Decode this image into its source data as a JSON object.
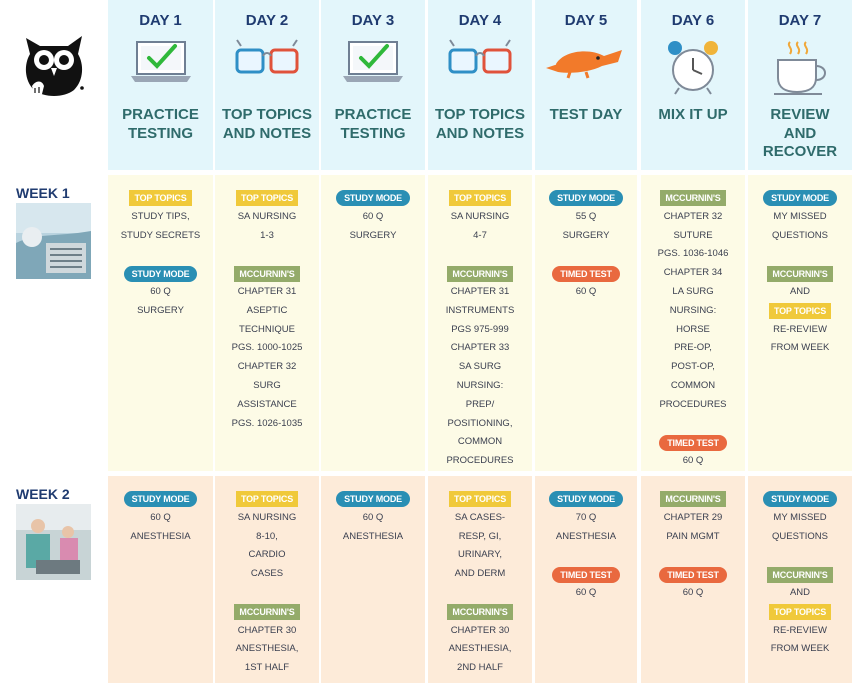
{
  "days": [
    {
      "name": "DAY 1",
      "title": [
        "PRACTICE",
        "TESTING"
      ],
      "icon": "laptop-check-icon"
    },
    {
      "name": "DAY 2",
      "title": [
        "TOP TOPICS",
        "AND NOTES"
      ],
      "icon": "glasses-icon"
    },
    {
      "name": "DAY 3",
      "title": [
        "PRACTICE",
        "TESTING"
      ],
      "icon": "laptop-check-icon"
    },
    {
      "name": "DAY 4",
      "title": [
        "TOP TOPICS",
        "AND NOTES"
      ],
      "icon": "glasses-icon"
    },
    {
      "name": "DAY 5",
      "title": [
        "TEST DAY"
      ],
      "icon": "platypus-icon"
    },
    {
      "name": "DAY 6",
      "title": [
        "MIX IT UP"
      ],
      "icon": "alarm-clock-icon"
    },
    {
      "name": "DAY 7",
      "title": [
        "REVIEW",
        "AND",
        "RECOVER"
      ],
      "icon": "coffee-cup-icon"
    }
  ],
  "weeks": [
    {
      "label": "WEEK 1",
      "photo": "surgery-instruments-photo",
      "cells": [
        [
          {
            "t": "tag",
            "k": "top",
            "v": "TOP TOPICS"
          },
          {
            "t": "line",
            "v": "STUDY TIPS,"
          },
          {
            "t": "line",
            "v": "STUDY SECRETS"
          },
          {
            "t": "gap"
          },
          {
            "t": "tag",
            "k": "study",
            "v": "STUDY MODE"
          },
          {
            "t": "line",
            "v": "60 Q"
          },
          {
            "t": "line",
            "v": "SURGERY"
          }
        ],
        [
          {
            "t": "tag",
            "k": "top",
            "v": "TOP TOPICS"
          },
          {
            "t": "line",
            "v": "SA NURSING"
          },
          {
            "t": "line",
            "v": "1-3"
          },
          {
            "t": "gap"
          },
          {
            "t": "tag",
            "k": "mcc",
            "v": "MCCURNIN'S"
          },
          {
            "t": "line",
            "v": "CHAPTER 31"
          },
          {
            "t": "line",
            "v": "ASEPTIC"
          },
          {
            "t": "line",
            "v": "TECHNIQUE"
          },
          {
            "t": "line",
            "v": "PGS. 1000-1025"
          },
          {
            "t": "line",
            "v": "CHAPTER 32"
          },
          {
            "t": "line",
            "v": "SURG"
          },
          {
            "t": "line",
            "v": "ASSISTANCE"
          },
          {
            "t": "line",
            "v": "PGS. 1026-1035"
          }
        ],
        [
          {
            "t": "tag",
            "k": "study",
            "v": "STUDY MODE"
          },
          {
            "t": "line",
            "v": "60 Q"
          },
          {
            "t": "line",
            "v": "SURGERY"
          }
        ],
        [
          {
            "t": "tag",
            "k": "top",
            "v": "TOP TOPICS"
          },
          {
            "t": "line",
            "v": "SA NURSING"
          },
          {
            "t": "line",
            "v": "4-7"
          },
          {
            "t": "gap"
          },
          {
            "t": "tag",
            "k": "mcc",
            "v": "MCCURNIN'S"
          },
          {
            "t": "line",
            "v": "CHAPTER 31"
          },
          {
            "t": "line",
            "v": "INSTRUMENTS"
          },
          {
            "t": "line",
            "v": "PGS 975-999"
          },
          {
            "t": "line",
            "v": "CHAPTER 33"
          },
          {
            "t": "line",
            "v": "SA SURG"
          },
          {
            "t": "line",
            "v": "NURSING:"
          },
          {
            "t": "line",
            "v": "PREP/"
          },
          {
            "t": "line",
            "v": "POSITIONING,"
          },
          {
            "t": "line",
            "v": "COMMON"
          },
          {
            "t": "line",
            "v": "PROCEDURES"
          }
        ],
        [
          {
            "t": "tag",
            "k": "study",
            "v": "STUDY MODE"
          },
          {
            "t": "line",
            "v": "55 Q"
          },
          {
            "t": "line",
            "v": "SURGERY"
          },
          {
            "t": "gap"
          },
          {
            "t": "tag",
            "k": "timed",
            "v": "TIMED TEST"
          },
          {
            "t": "line",
            "v": "60 Q"
          }
        ],
        [
          {
            "t": "tag",
            "k": "mcc",
            "v": "MCCURNIN'S"
          },
          {
            "t": "line",
            "v": "CHAPTER 32"
          },
          {
            "t": "line",
            "v": "SUTURE"
          },
          {
            "t": "line",
            "v": "PGS. 1036-1046"
          },
          {
            "t": "line",
            "v": "CHAPTER 34"
          },
          {
            "t": "line",
            "v": "LA SURG"
          },
          {
            "t": "line",
            "v": "NURSING:"
          },
          {
            "t": "line",
            "v": "HORSE"
          },
          {
            "t": "line",
            "v": "PRE-OP,"
          },
          {
            "t": "line",
            "v": "POST-OP,"
          },
          {
            "t": "line",
            "v": "COMMON"
          },
          {
            "t": "line",
            "v": "PROCEDURES"
          },
          {
            "t": "gap"
          },
          {
            "t": "tag",
            "k": "timed",
            "v": "TIMED TEST"
          },
          {
            "t": "line",
            "v": "60 Q"
          }
        ],
        [
          {
            "t": "tag",
            "k": "study",
            "v": "STUDY MODE"
          },
          {
            "t": "line",
            "v": "MY MISSED"
          },
          {
            "t": "line",
            "v": "QUESTIONS"
          },
          {
            "t": "gap"
          },
          {
            "t": "tag",
            "k": "mcc",
            "v": "MCCURNIN'S"
          },
          {
            "t": "line",
            "v": "AND"
          },
          {
            "t": "tag",
            "k": "top",
            "v": "TOP TOPICS"
          },
          {
            "t": "line",
            "v": "RE-REVIEW"
          },
          {
            "t": "line",
            "v": "FROM WEEK"
          }
        ]
      ]
    },
    {
      "label": "WEEK 2",
      "photo": "anesthesia-team-photo",
      "cells": [
        [
          {
            "t": "tag",
            "k": "study",
            "v": "STUDY MODE"
          },
          {
            "t": "line",
            "v": "60 Q"
          },
          {
            "t": "line",
            "v": "ANESTHESIA"
          }
        ],
        [
          {
            "t": "tag",
            "k": "top",
            "v": "TOP TOPICS"
          },
          {
            "t": "line",
            "v": "SA NURSING"
          },
          {
            "t": "line",
            "v": "8-10,"
          },
          {
            "t": "line",
            "v": "CARDIO"
          },
          {
            "t": "line",
            "v": "CASES"
          },
          {
            "t": "gap"
          },
          {
            "t": "tag",
            "k": "mcc",
            "v": "MCCURNIN'S"
          },
          {
            "t": "line",
            "v": "CHAPTER 30"
          },
          {
            "t": "line",
            "v": "ANESTHESIA,"
          },
          {
            "t": "line",
            "v": "1ST HALF"
          }
        ],
        [
          {
            "t": "tag",
            "k": "study",
            "v": "STUDY MODE"
          },
          {
            "t": "line",
            "v": "60 Q"
          },
          {
            "t": "line",
            "v": "ANESTHESIA"
          }
        ],
        [
          {
            "t": "tag",
            "k": "top",
            "v": "TOP TOPICS"
          },
          {
            "t": "line",
            "v": "SA CASES-"
          },
          {
            "t": "line",
            "v": "RESP, GI,"
          },
          {
            "t": "line",
            "v": "URINARY,"
          },
          {
            "t": "line",
            "v": "AND DERM"
          },
          {
            "t": "gap"
          },
          {
            "t": "tag",
            "k": "mcc",
            "v": "MCCURNIN'S"
          },
          {
            "t": "line",
            "v": "CHAPTER 30"
          },
          {
            "t": "line",
            "v": "ANESTHESIA,"
          },
          {
            "t": "line",
            "v": "2ND HALF"
          }
        ],
        [
          {
            "t": "tag",
            "k": "study",
            "v": "STUDY MODE"
          },
          {
            "t": "line",
            "v": "70 Q"
          },
          {
            "t": "line",
            "v": "ANESTHESIA"
          },
          {
            "t": "gap"
          },
          {
            "t": "tag",
            "k": "timed",
            "v": "TIMED TEST"
          },
          {
            "t": "line",
            "v": "60 Q"
          }
        ],
        [
          {
            "t": "tag",
            "k": "mcc",
            "v": "MCCURNIN'S"
          },
          {
            "t": "line",
            "v": "CHAPTER 29"
          },
          {
            "t": "line",
            "v": "PAIN MGMT"
          },
          {
            "t": "gap"
          },
          {
            "t": "tag",
            "k": "timed",
            "v": "TIMED TEST"
          },
          {
            "t": "line",
            "v": "60 Q"
          }
        ],
        [
          {
            "t": "tag",
            "k": "study",
            "v": "STUDY MODE"
          },
          {
            "t": "line",
            "v": "MY MISSED"
          },
          {
            "t": "line",
            "v": "QUESTIONS"
          },
          {
            "t": "gap"
          },
          {
            "t": "tag",
            "k": "mcc",
            "v": "MCCURNIN'S"
          },
          {
            "t": "line",
            "v": "AND"
          },
          {
            "t": "tag",
            "k": "top",
            "v": "TOP TOPICS"
          },
          {
            "t": "line",
            "v": "RE-REVIEW"
          },
          {
            "t": "line",
            "v": "FROM WEEK"
          }
        ]
      ]
    }
  ],
  "colors": {
    "header_bg": "#e3f6fb",
    "week1_bg": "#fdfbe6",
    "week2_bg": "#fdebd9",
    "top_topics": "#f0c93a",
    "study_mode": "#2a8fb4",
    "mccurnins": "#94ab6a",
    "timed_test": "#e9693f"
  }
}
